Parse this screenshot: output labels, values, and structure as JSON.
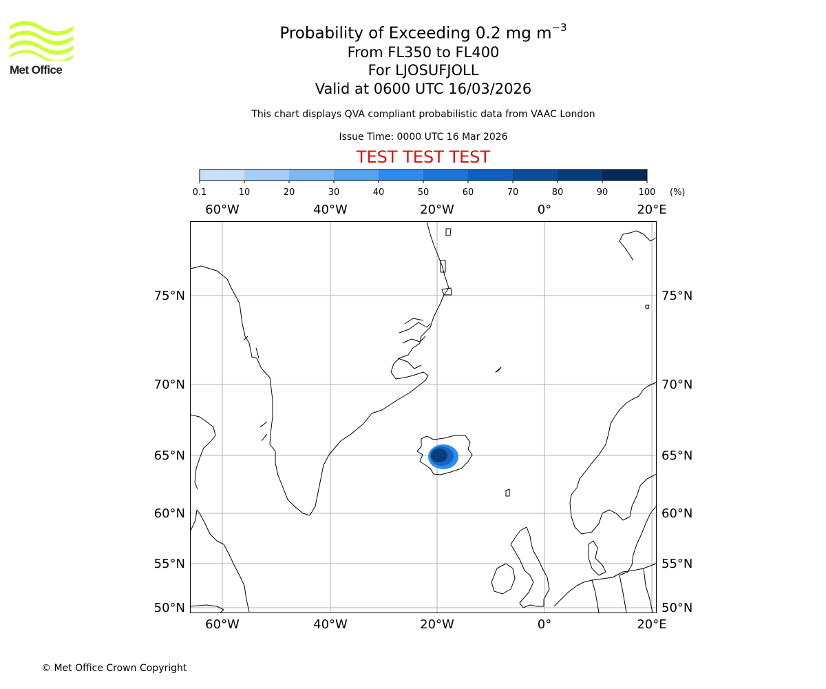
{
  "logo": {
    "text": "Met Office",
    "color": "#ccff33"
  },
  "header": {
    "title_prefix": "Probability of Exceeding 0.2 mg m",
    "title_exponent": "−3",
    "flight_levels": "From FL350 to FL400",
    "volcano": "For LJOSUFJOLL",
    "valid_time": "Valid at 0600 UTC 16/03/2026",
    "disclaimer": "This chart displays QVA compliant probabilistic data from VAAC London",
    "issue_time": "Issue Time: 0000 UTC 16 Mar 2026",
    "test_banner": "TEST TEST TEST"
  },
  "colorbar": {
    "ticks": [
      "0.1",
      "10",
      "20",
      "30",
      "40",
      "50",
      "60",
      "70",
      "80",
      "90",
      "100"
    ],
    "unit": "(%)",
    "colors": [
      "#eef6ff",
      "#c8e0fb",
      "#a6cdf6",
      "#7db8f4",
      "#52a3f2",
      "#2b8cee",
      "#1675d9",
      "#0d5fc0",
      "#0a4c9e",
      "#073c7c",
      "#062a58"
    ]
  },
  "map": {
    "lon_labels": [
      "60°W",
      "40°W",
      "20°W",
      "0°",
      "20°E"
    ],
    "lat_labels": [
      "75°N",
      "70°N",
      "65°N",
      "60°N",
      "55°N",
      "50°N"
    ],
    "gridline_color": "#b0b0b0",
    "plume_colors": [
      "#0a3c78",
      "#1565c0",
      "#2b8cee"
    ]
  },
  "footer": {
    "copyright": "© Met Office Crown Copyright"
  }
}
